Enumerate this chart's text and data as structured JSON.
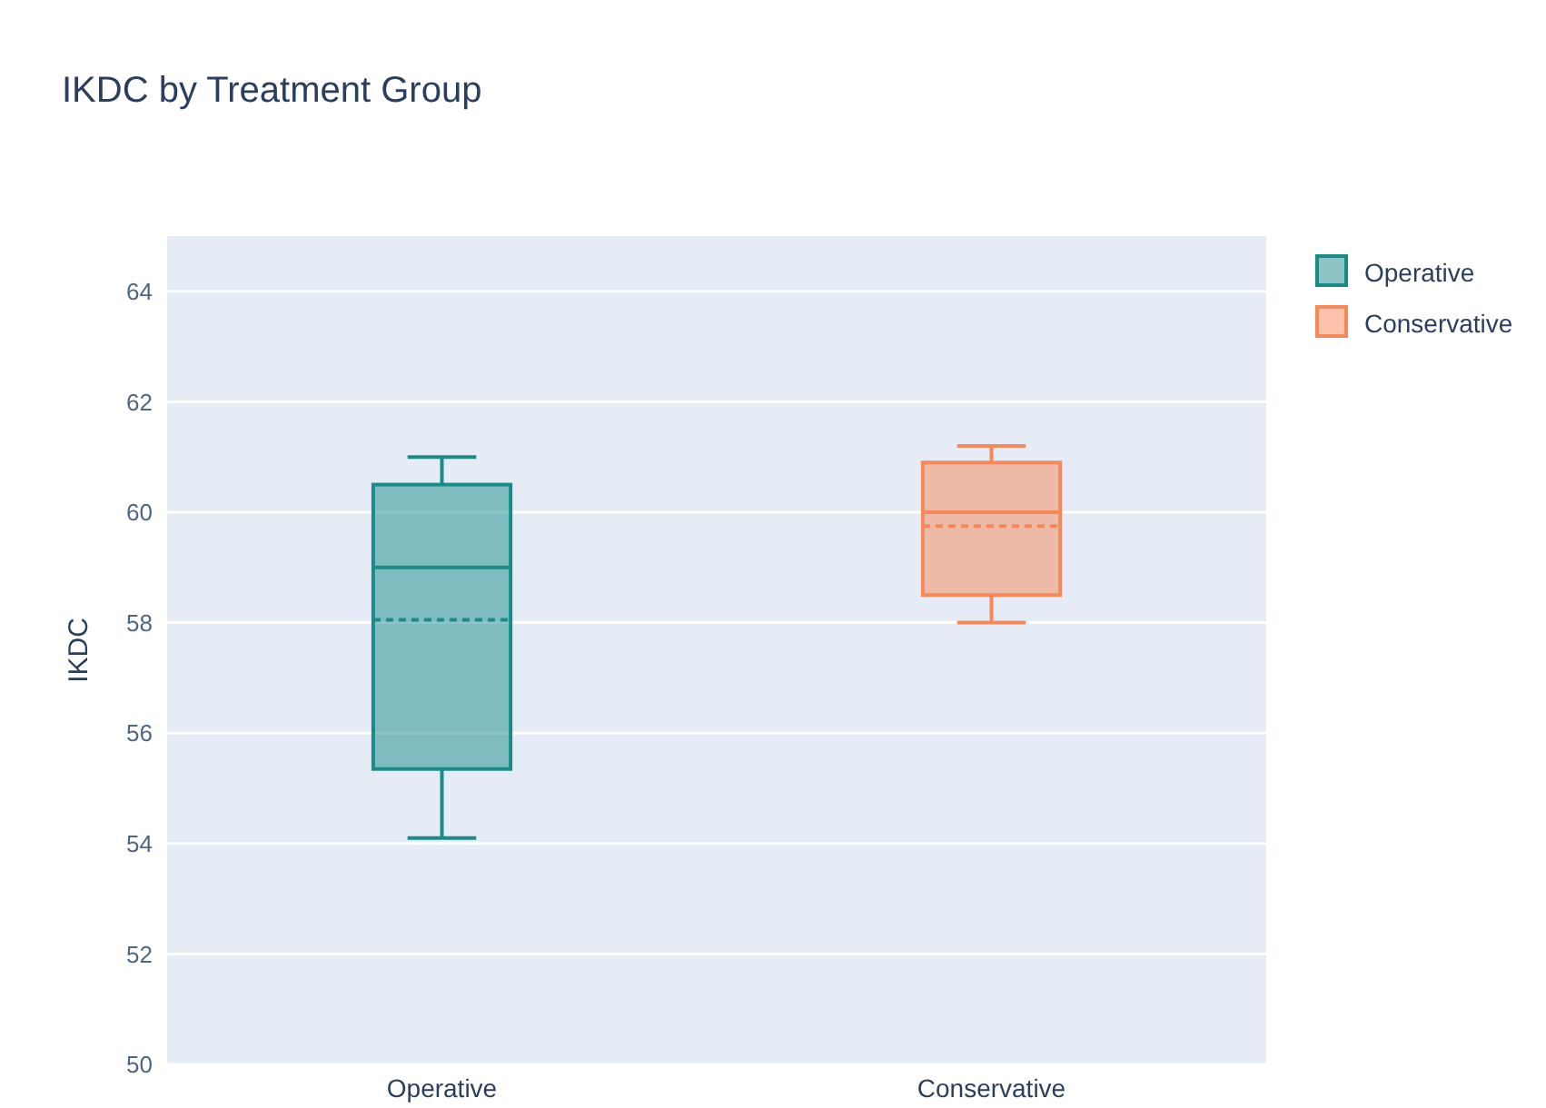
{
  "chart_data": {
    "type": "box",
    "title": "IKDC by Treatment Group",
    "ylabel": "IKDC",
    "categories": [
      "Operative",
      "Conservative"
    ],
    "series": [
      {
        "name": "Operative",
        "color": "#1a8c87",
        "boxes": [
          {
            "low": 54.1,
            "q1": 55.35,
            "median": 59,
            "q3": 60.5,
            "high": 61,
            "mean": 58.05
          },
          null
        ]
      },
      {
        "name": "Conservative",
        "color": "#f7885a",
        "boxes": [
          null,
          {
            "low": 58,
            "q1": 58.5,
            "median": 60,
            "q3": 60.9,
            "high": 61.2,
            "mean": 59.75
          }
        ]
      }
    ],
    "ylim": [
      50,
      65
    ],
    "yticks": [
      50,
      52,
      54,
      56,
      58,
      60,
      62,
      64
    ],
    "grid": "y",
    "legend": "top right"
  }
}
